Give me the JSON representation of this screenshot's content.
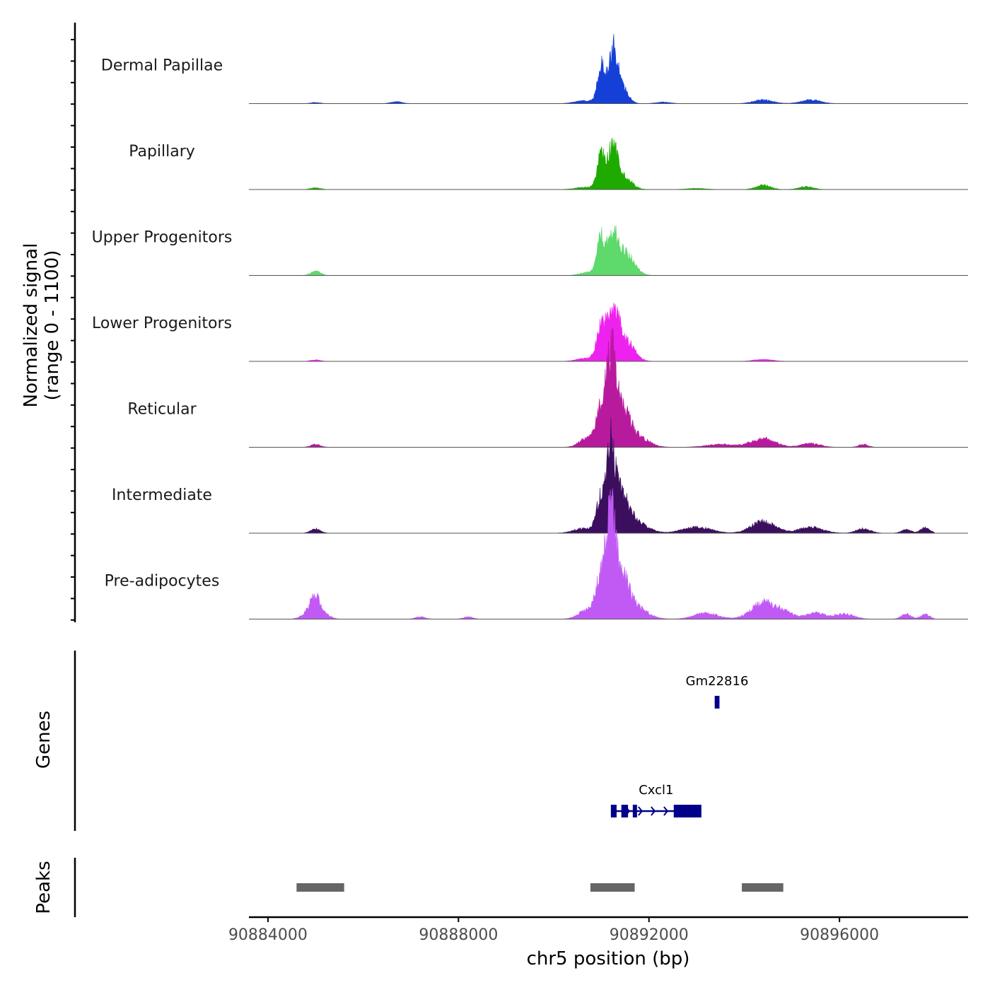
{
  "chart_data": {
    "type": "area",
    "title": "",
    "ylabel_line1": "Normalized signal",
    "ylabel_line2": "(range 0 - 1100)",
    "xlabel": "chr5 position (bp)",
    "chrom": "chr5",
    "xlim": [
      90883600,
      90898700
    ],
    "ylim": [
      0,
      1100
    ],
    "x_ticks": [
      90884000,
      90888000,
      90892000,
      90896000
    ],
    "x_tick_labels": [
      "90884000",
      "90888000",
      "90892000",
      "90896000"
    ],
    "tracks": [
      {
        "name": "Dermal Papillae",
        "color": "#1440d8",
        "peaks": [
          [
            90891000,
            500,
            80
          ],
          [
            90891250,
            700,
            90
          ],
          [
            90891450,
            200,
            120
          ]
        ],
        "minor": [
          [
            90885000,
            15,
            100
          ],
          [
            90886700,
            25,
            120
          ],
          [
            90890650,
            40,
            200
          ],
          [
            90894400,
            50,
            200
          ],
          [
            90895400,
            50,
            200
          ],
          [
            90892300,
            20,
            150
          ]
        ]
      },
      {
        "name": "Papillary",
        "color": "#1faa00",
        "peaks": [
          [
            90891000,
            450,
            90
          ],
          [
            90891250,
            580,
            100
          ],
          [
            90891500,
            150,
            150
          ]
        ],
        "minor": [
          [
            90885000,
            25,
            100
          ],
          [
            90890650,
            30,
            200
          ],
          [
            90894400,
            60,
            150
          ],
          [
            90895300,
            40,
            150
          ],
          [
            90893000,
            15,
            200
          ]
        ]
      },
      {
        "name": "Upper Progenitors",
        "color": "#5ed96b",
        "peaks": [
          [
            90891000,
            500,
            90
          ],
          [
            90891250,
            450,
            100
          ],
          [
            90891500,
            300,
            180
          ]
        ],
        "minor": [
          [
            90885000,
            60,
            100
          ],
          [
            90890700,
            40,
            150
          ]
        ]
      },
      {
        "name": "Lower Progenitors",
        "color": "#ee22ee",
        "peaks": [
          [
            90891000,
            420,
            100
          ],
          [
            90891250,
            620,
            120
          ],
          [
            90891500,
            280,
            180
          ]
        ],
        "minor": [
          [
            90885000,
            20,
            100
          ],
          [
            90890700,
            40,
            200
          ],
          [
            90894400,
            25,
            200
          ]
        ]
      },
      {
        "name": "Reticular",
        "color": "#b81a9e",
        "peaks": [
          [
            90891000,
            540,
            100
          ],
          [
            90891200,
            1020,
            90
          ],
          [
            90891400,
            520,
            160
          ],
          [
            90891700,
            160,
            250
          ]
        ],
        "minor": [
          [
            90885000,
            40,
            100
          ],
          [
            90890700,
            120,
            160
          ],
          [
            90893500,
            40,
            300
          ],
          [
            90894400,
            120,
            250
          ],
          [
            90895400,
            50,
            200
          ],
          [
            90896500,
            40,
            100
          ]
        ]
      },
      {
        "name": "Intermediate",
        "color": "#3c0f5e",
        "peaks": [
          [
            90891000,
            500,
            100
          ],
          [
            90891200,
            1020,
            80
          ],
          [
            90891400,
            480,
            150
          ],
          [
            90891700,
            160,
            250
          ]
        ],
        "minor": [
          [
            90885000,
            60,
            100
          ],
          [
            90890600,
            60,
            200
          ],
          [
            90893000,
            80,
            300
          ],
          [
            90894400,
            160,
            250
          ],
          [
            90895400,
            80,
            250
          ],
          [
            90896500,
            60,
            150
          ],
          [
            90897400,
            50,
            100
          ],
          [
            90897800,
            70,
            100
          ]
        ]
      },
      {
        "name": "Pre-adipocytes",
        "color": "#c15af5",
        "peaks": [
          [
            90891000,
            560,
            110
          ],
          [
            90891200,
            1080,
            90
          ],
          [
            90891400,
            560,
            160
          ],
          [
            90891700,
            160,
            250
          ]
        ],
        "minor": [
          [
            90884800,
            60,
            120
          ],
          [
            90885000,
            300,
            110
          ],
          [
            90885250,
            40,
            100
          ],
          [
            90887200,
            30,
            100
          ],
          [
            90888200,
            30,
            100
          ],
          [
            90890700,
            120,
            180
          ],
          [
            90893200,
            80,
            250
          ],
          [
            90894400,
            220,
            250
          ],
          [
            90894850,
            80,
            200
          ],
          [
            90895500,
            80,
            200
          ],
          [
            90896100,
            70,
            200
          ],
          [
            90897400,
            70,
            100
          ],
          [
            90897800,
            60,
            100
          ]
        ]
      }
    ],
    "genes_label": "Genes",
    "genes": [
      {
        "name": "Gm22816",
        "start": 90893380,
        "end": 90893480,
        "strand": "+",
        "row": 0,
        "exons": [
          [
            90893380,
            90893480
          ]
        ]
      },
      {
        "name": "Cxcl1",
        "start": 90891200,
        "end": 90893100,
        "strand": "+",
        "row": 1,
        "exons": [
          [
            90891200,
            90891320
          ],
          [
            90891420,
            90891560
          ],
          [
            90891660,
            90891740
          ],
          [
            90892520,
            90893100
          ]
        ]
      }
    ],
    "peaks_label": "Peaks",
    "peak_regions": [
      [
        90884600,
        90885600
      ],
      [
        90890770,
        90891700
      ],
      [
        90893950,
        90894820
      ]
    ]
  }
}
